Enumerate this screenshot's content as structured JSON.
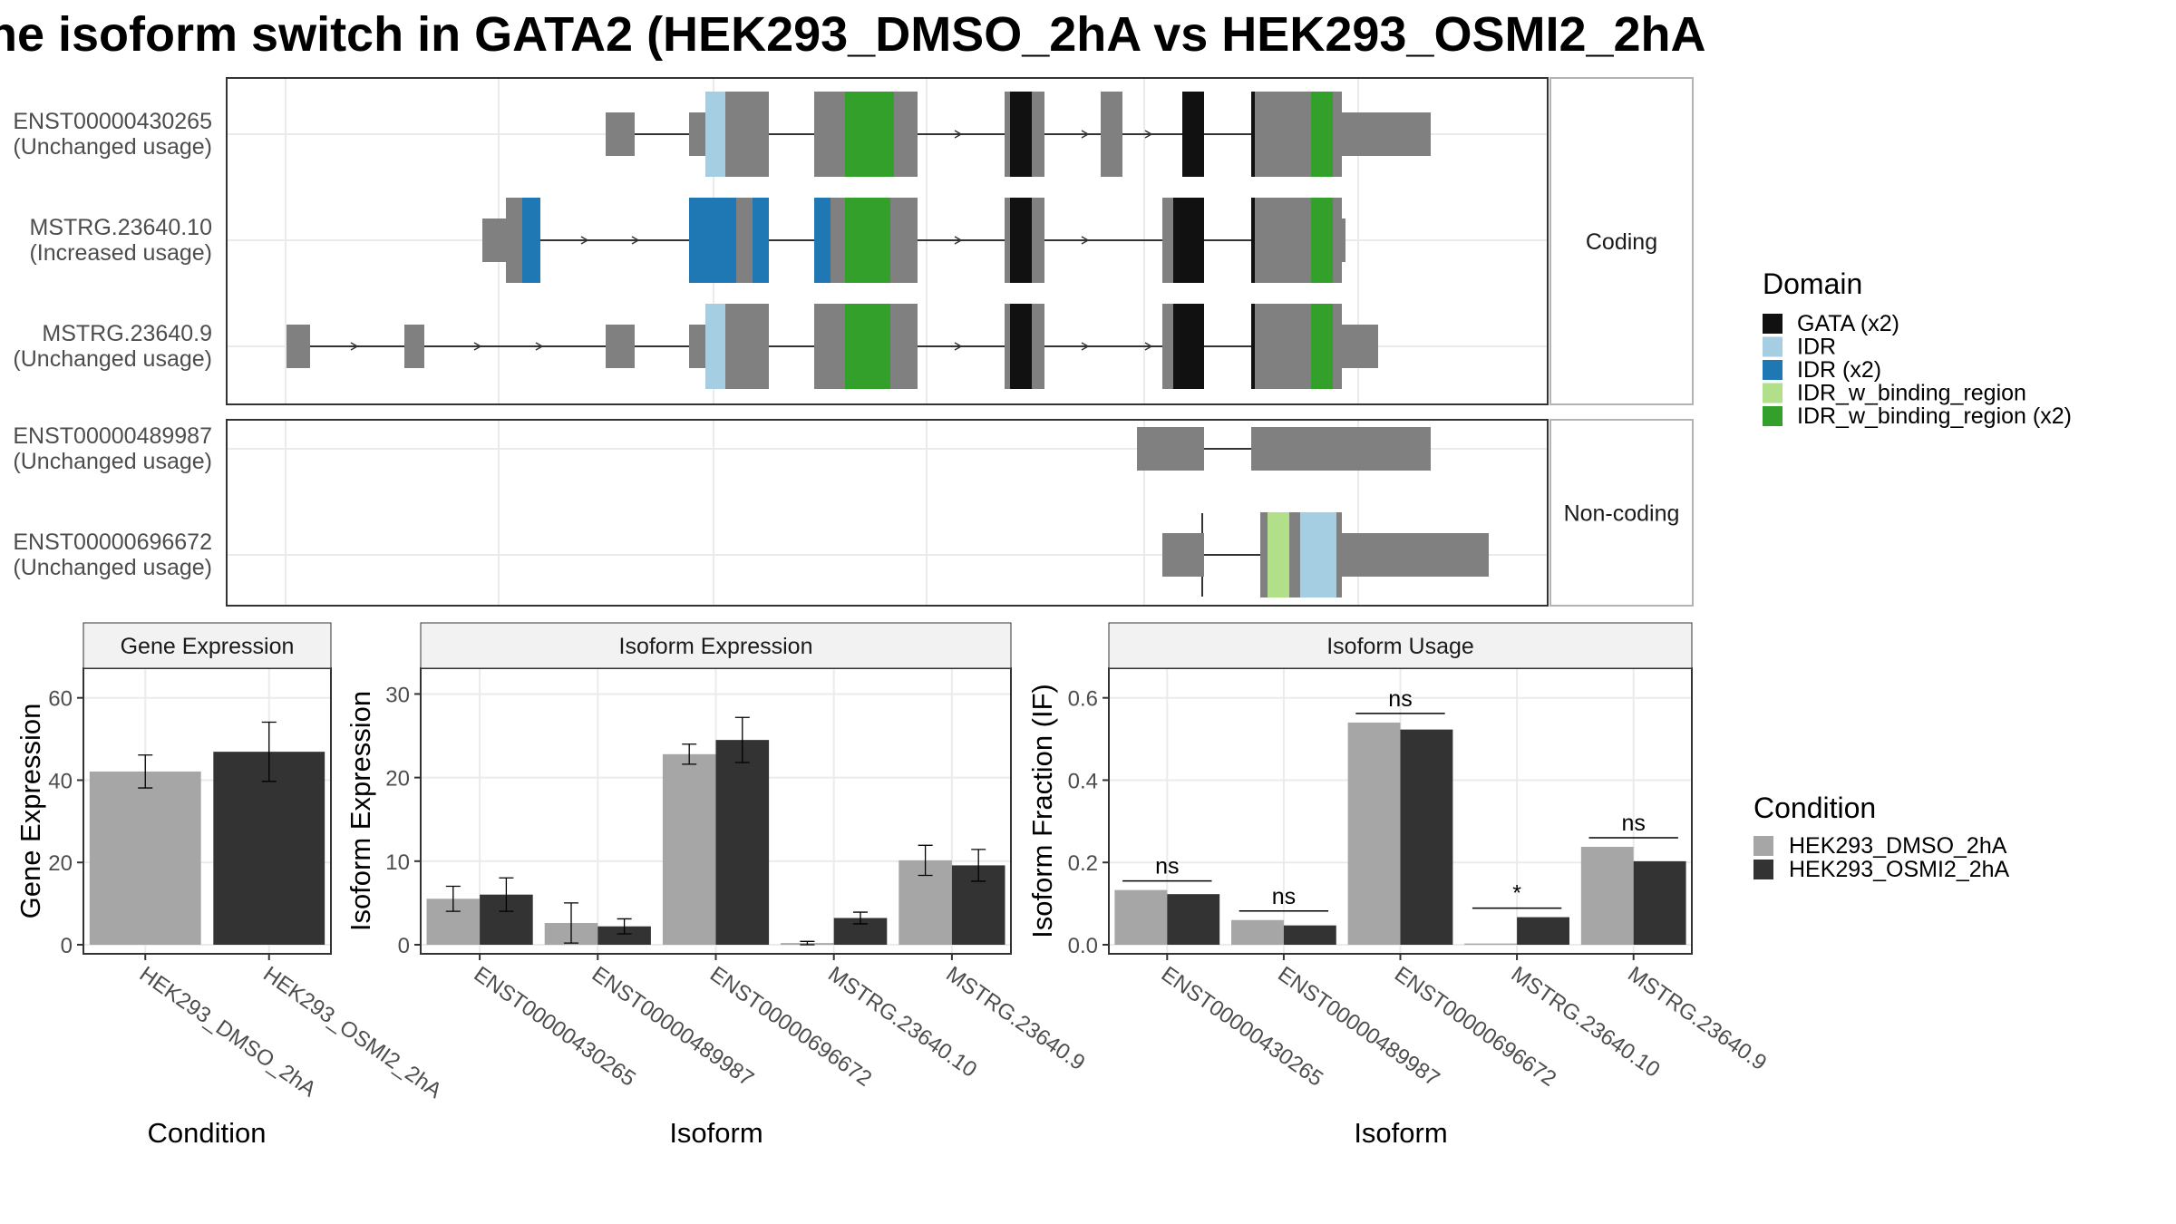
{
  "title": "he isoform switch in GATA2 (HEK293_DMSO_2hA vs HEK293_OSMI2_2hA",
  "structure": {
    "facets": [
      "Coding",
      "Non-coding"
    ],
    "isoforms": [
      {
        "id": "ENST00000430265",
        "usage": "(Unchanged usage)",
        "facet": "Coding"
      },
      {
        "id": "MSTRG.23640.10",
        "usage": "(Increased usage)",
        "facet": "Coding"
      },
      {
        "id": "MSTRG.23640.9",
        "usage": "(Unchanged usage)",
        "facet": "Coding"
      },
      {
        "id": "ENST00000489987",
        "usage": "(Unchanged usage)",
        "facet": "Non-coding"
      },
      {
        "id": "ENST00000696672",
        "usage": "(Unchanged usage)",
        "facet": "Non-coding"
      }
    ],
    "domain_legend": {
      "title": "Domain",
      "items": [
        {
          "label": "GATA (x2)",
          "color": "#111111"
        },
        {
          "label": "IDR",
          "color": "#a6cee3"
        },
        {
          "label": "IDR (x2)",
          "color": "#1f78b4"
        },
        {
          "label": "IDR_w_binding_region",
          "color": "#b2df8a"
        },
        {
          "label": "IDR_w_binding_region (x2)",
          "color": "#33a02c"
        }
      ]
    },
    "exon_color": "#808080"
  },
  "condition_legend": {
    "title": "Condition",
    "items": [
      {
        "label": "HEK293_DMSO_2hA",
        "color": "#a6a6a6"
      },
      {
        "label": "HEK293_OSMI2_2hA",
        "color": "#333333"
      }
    ]
  },
  "chart_data": [
    {
      "type": "bar",
      "title": "Gene Expression",
      "xlabel": "Condition",
      "ylabel": "Gene Expression",
      "ylim": [
        0,
        65
      ],
      "yticks": [
        0,
        20,
        40,
        60
      ],
      "categories": [
        "HEK293_DMSO_2hA",
        "HEK293_OSMI2_2hA"
      ],
      "series": [
        {
          "name": "HEK293_DMSO_2hA",
          "values": [
            42.1,
            null
          ],
          "err": [
            4.0,
            null
          ]
        },
        {
          "name": "HEK293_OSMI2_2hA",
          "values": [
            null,
            46.9
          ],
          "err": [
            null,
            7.2
          ]
        }
      ]
    },
    {
      "type": "bar",
      "title": "Isoform Expression",
      "xlabel": "Isoform",
      "ylabel": "Isoform Expression",
      "ylim": [
        0,
        32
      ],
      "yticks": [
        0,
        10,
        20,
        30
      ],
      "categories": [
        "ENST00000430265",
        "ENST00000489987",
        "ENST00000696672",
        "MSTRG.23640.10",
        "MSTRG.23640.9"
      ],
      "series": [
        {
          "name": "HEK293_DMSO_2hA",
          "values": [
            5.5,
            2.6,
            22.8,
            0.2,
            10.1
          ],
          "err": [
            1.5,
            2.4,
            1.2,
            0.2,
            1.8
          ]
        },
        {
          "name": "HEK293_OSMI2_2hA",
          "values": [
            6.0,
            2.2,
            24.5,
            3.2,
            9.5
          ],
          "err": [
            2.0,
            0.9,
            2.7,
            0.7,
            1.9
          ]
        }
      ]
    },
    {
      "type": "bar",
      "title": "Isoform Usage",
      "xlabel": "Isoform",
      "ylabel": "Isoform Fraction (IF)",
      "ylim": [
        0,
        0.65
      ],
      "yticks": [
        "0.0",
        "0.2",
        "0.4",
        "0.6"
      ],
      "categories": [
        "ENST00000430265",
        "ENST00000489987",
        "ENST00000696672",
        "MSTRG.23640.10",
        "MSTRG.23640.9"
      ],
      "series": [
        {
          "name": "HEK293_DMSO_2hA",
          "values": [
            0.133,
            0.06,
            0.54,
            0.003,
            0.238
          ]
        },
        {
          "name": "HEK293_OSMI2_2hA",
          "values": [
            0.123,
            0.047,
            0.523,
            0.067,
            0.203
          ]
        }
      ],
      "significance": [
        "ns",
        "ns",
        "ns",
        "*",
        "ns"
      ]
    }
  ]
}
